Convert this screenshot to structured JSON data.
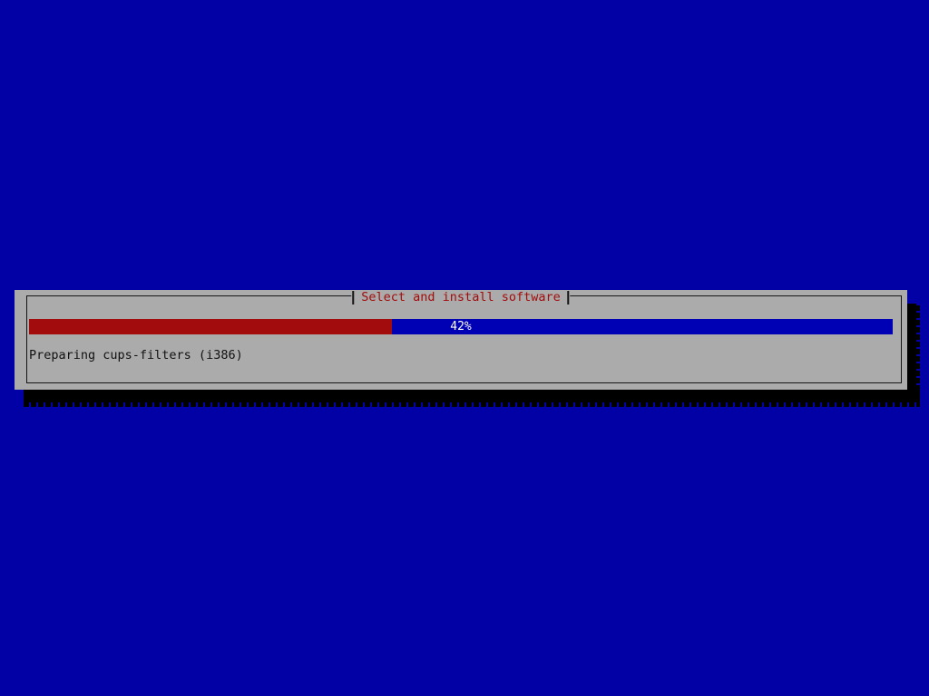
{
  "screen": {
    "background_color": "#0101a6"
  },
  "dialog": {
    "title": "Select and install software",
    "progress": {
      "percent": 42,
      "label": "42%",
      "fill_color": "#a20c0c",
      "track_color": "#0000b4"
    },
    "status_text": "Preparing cups-filters (i386)",
    "colors": {
      "surface": "#ababab",
      "border": "#141414",
      "title_text": "#a20c0c",
      "status_text": "#111111",
      "percent_text": "#ffffff"
    }
  }
}
